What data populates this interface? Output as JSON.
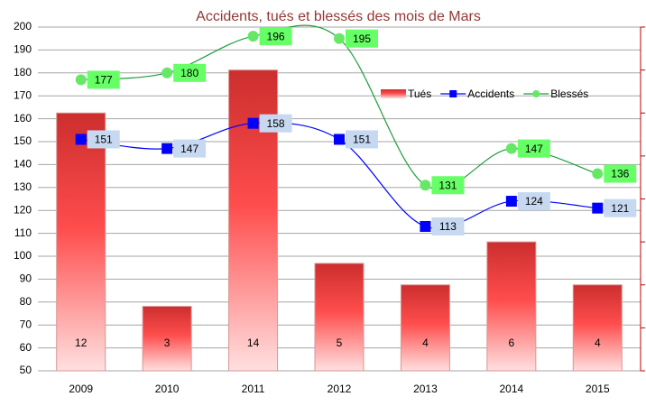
{
  "chart_data": {
    "type": "bar-line",
    "title": "Accidents, tués et blessés des mois de Mars",
    "categories": [
      "2009",
      "2010",
      "2011",
      "2012",
      "2013",
      "2014",
      "2015"
    ],
    "series": [
      {
        "name": "Tués",
        "type": "bar",
        "axis": "y2",
        "color": "#e03a3a",
        "values": [
          12,
          3,
          14,
          5,
          4,
          6,
          4
        ]
      },
      {
        "name": "Accidents",
        "type": "line",
        "color": "#0000ff",
        "values": [
          151,
          147,
          158,
          151,
          113,
          124,
          121
        ]
      },
      {
        "name": "Blessés",
        "type": "line",
        "color": "#1f9e3a",
        "values": [
          177,
          180,
          196,
          195,
          131,
          147,
          136
        ]
      }
    ],
    "ylim": [
      50,
      200
    ],
    "yticks": [
      50,
      60,
      70,
      80,
      90,
      100,
      110,
      120,
      130,
      140,
      150,
      160,
      170,
      180,
      190,
      200
    ],
    "y2lim": [
      0,
      16
    ],
    "y2ticks": [
      0,
      2,
      4,
      6,
      8,
      10,
      12,
      14,
      16
    ],
    "grid": true,
    "legend": "upper right"
  }
}
